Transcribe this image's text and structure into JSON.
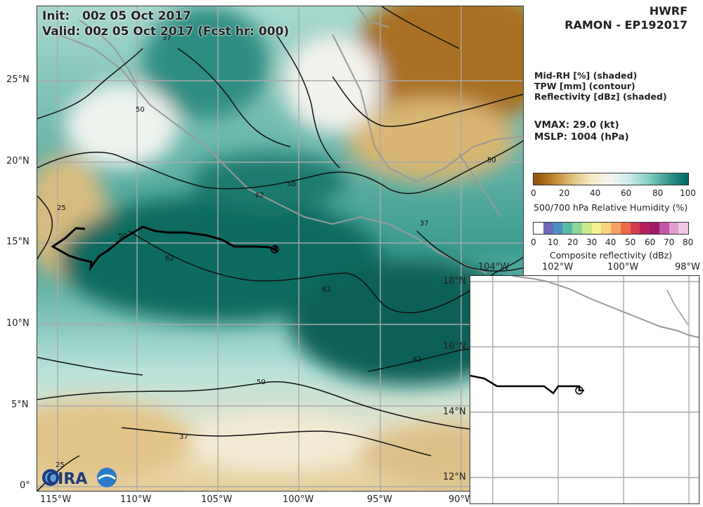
{
  "map": {
    "init_label": "Init:",
    "init_value": "00z 05 Oct 2017",
    "valid_label": "Valid:",
    "valid_value": "00z 05 Oct 2017 (Fcst hr: 000)",
    "lat_labels": [
      "25°N",
      "20°N",
      "15°N",
      "10°N",
      "5°N",
      "0°"
    ],
    "lon_labels": [
      "115°W",
      "110°W",
      "105°W",
      "100°W",
      "95°W",
      "90°W"
    ],
    "contour_labels": [
      "37",
      "50",
      "62",
      "25",
      "50",
      "62",
      "50",
      "37",
      "62",
      "62",
      "50",
      "37",
      "25",
      "50"
    ]
  },
  "header": {
    "model": "HWRF",
    "storm": "RAMON - EP192017"
  },
  "fields": {
    "line1": "Mid-RH [%] (shaded)",
    "line2": "TPW [mm] (contour)",
    "line3": "Reflectivity [dBz] (shaded)"
  },
  "stats": {
    "vmax": "VMAX:  29.0 (kt)",
    "mslp": "MSLP: 1004 (hPa)"
  },
  "rh_legend": {
    "ticks": [
      "0",
      "20",
      "40",
      "60",
      "80",
      "100"
    ],
    "title": "500/700 hPa Relative Humidity (%)",
    "colors": [
      "#8c5109",
      "#bf812c",
      "#dfc27d",
      "#f6e8c3",
      "#f5f5f5",
      "#c7eae5",
      "#80cdc1",
      "#35978f",
      "#01665e"
    ]
  },
  "refl_legend": {
    "ticks": [
      "0",
      "10",
      "20",
      "30",
      "40",
      "50",
      "60",
      "70",
      "80"
    ],
    "title": "Composite reflectivity (dBz)",
    "colors": [
      "#ffffff",
      "#6a6ab8",
      "#4a90c2",
      "#58b8a6",
      "#8fd49a",
      "#c9e98a",
      "#f2f28e",
      "#f9d27a",
      "#f7a262",
      "#ee6b4a",
      "#d63c4f",
      "#b51f5c",
      "#9c1a6a",
      "#c455a4",
      "#e39bd0",
      "#f2c7e6"
    ]
  },
  "inset": {
    "lat_labels": [
      "18°N",
      "16°N",
      "14°N",
      "12°N"
    ],
    "lon_labels": [
      "104°W",
      "102°W",
      "100°W",
      "98°W"
    ]
  },
  "logo": {
    "text": "CIRA"
  }
}
